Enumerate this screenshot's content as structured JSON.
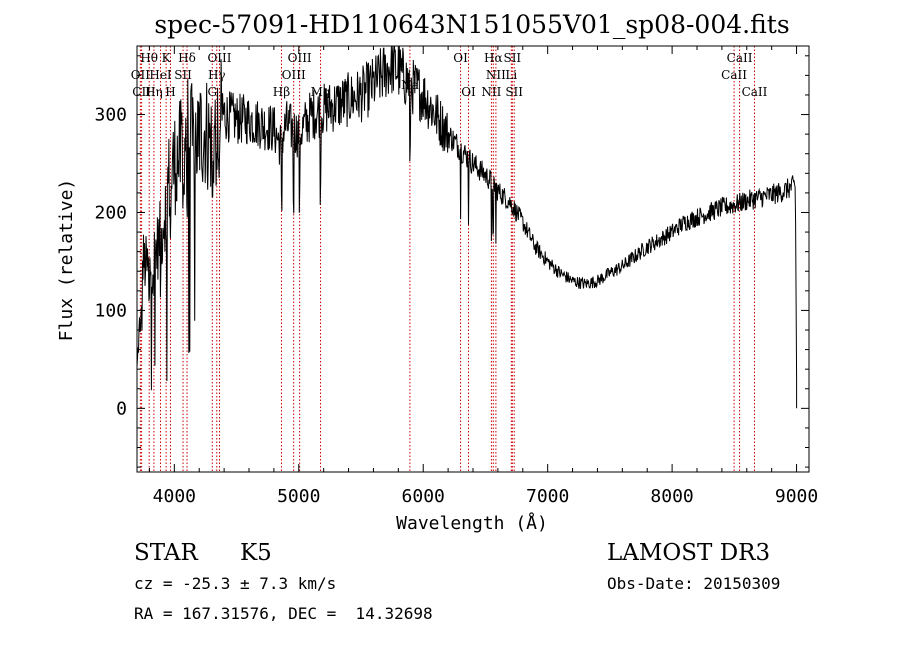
{
  "chart_data": {
    "type": "line",
    "title": "spec-57091-HD110643N151055V01_sp08-004.fits",
    "xlabel": "Wavelength (Å)",
    "ylabel": "Flux (relative)",
    "xlim": [
      3700,
      9100
    ],
    "ylim": [
      -65,
      370
    ],
    "x_ticks": [
      4000,
      5000,
      6000,
      7000,
      8000,
      9000
    ],
    "y_ticks": [
      0,
      100,
      200,
      300
    ],
    "x_tick_labels": [
      "4000",
      "5000",
      "6000",
      "7000",
      "8000",
      "9000"
    ],
    "y_tick_labels": [
      "0",
      "100",
      "200",
      "300"
    ],
    "grid": false,
    "series": [
      {
        "x": [
          3700,
          3750,
          3800,
          3850,
          3900,
          3950,
          4000,
          4050,
          4100,
          4150,
          4200,
          4250,
          4300,
          4350,
          4400,
          4500,
          4600,
          4700,
          4800,
          4850,
          4900,
          5000,
          5100,
          5200,
          5300,
          5400,
          5500,
          5600,
          5700,
          5750,
          5800,
          5900,
          6000,
          6100,
          6200,
          6300,
          6400,
          6500,
          6563,
          6600,
          6700,
          6800,
          6900,
          7000,
          7100,
          7200,
          7300,
          7400,
          7500,
          7600,
          7700,
          7800,
          7900,
          8000,
          8100,
          8200,
          8300,
          8400,
          8500,
          8600,
          8700,
          8800,
          8900,
          8990,
          9000
        ],
        "y": [
          40,
          150,
          140,
          160,
          180,
          230,
          250,
          260,
          285,
          270,
          280,
          285,
          270,
          290,
          300,
          295,
          295,
          290,
          285,
          270,
          290,
          280,
          300,
          305,
          310,
          315,
          320,
          330,
          345,
          350,
          345,
          330,
          320,
          300,
          280,
          265,
          250,
          238,
          230,
          222,
          210,
          190,
          165,
          150,
          138,
          130,
          127,
          130,
          138,
          145,
          155,
          165,
          172,
          180,
          190,
          195,
          200,
          205,
          208,
          212,
          215,
          218,
          222,
          228,
          30
        ]
      }
    ],
    "line_labels": [
      {
        "text": "Hθ",
        "wl": 3798,
        "row": 0
      },
      {
        "text": "OII",
        "wl": 3727,
        "row": 1
      },
      {
        "text": "CII",
        "wl": 3737,
        "row": 2
      },
      {
        "text": "K",
        "wl": 3934,
        "row": 0
      },
      {
        "text": "HeI",
        "wl": 3889,
        "row": 1
      },
      {
        "text": "Hη",
        "wl": 3836,
        "row": 2
      },
      {
        "text": "SII",
        "wl": 4070,
        "row": 1
      },
      {
        "text": "H",
        "wl": 3969,
        "row": 2
      },
      {
        "text": "Hδ",
        "wl": 4102,
        "row": 0
      },
      {
        "text": "OIII",
        "wl": 4363,
        "row": 0
      },
      {
        "text": "Hγ",
        "wl": 4341,
        "row": 1
      },
      {
        "text": "G",
        "wl": 4305,
        "row": 2
      },
      {
        "text": "OIII",
        "wl": 5007,
        "row": 0
      },
      {
        "text": "OIII",
        "wl": 4959,
        "row": 1
      },
      {
        "text": "Hβ",
        "wl": 4861,
        "row": 2
      },
      {
        "text": "Mg",
        "wl": 5175,
        "row": 2
      },
      {
        "text": "Na",
        "wl": 5893,
        "row": 1.6
      },
      {
        "text": "OI",
        "wl": 6300,
        "row": 0
      },
      {
        "text": "OI",
        "wl": 6364,
        "row": 2
      },
      {
        "text": "Hα",
        "wl": 6563,
        "row": 0
      },
      {
        "text": "SII",
        "wl": 6716,
        "row": 0
      },
      {
        "text": "NII",
        "wl": 6584,
        "row": 1
      },
      {
        "text": "Li",
        "wl": 6708,
        "row": 1
      },
      {
        "text": "NII",
        "wl": 6548,
        "row": 2
      },
      {
        "text": "SII",
        "wl": 6731,
        "row": 2
      },
      {
        "text": "CaII",
        "wl": 8542,
        "row": 0
      },
      {
        "text": "CaII",
        "wl": 8498,
        "row": 1
      },
      {
        "text": "CaII",
        "wl": 8662,
        "row": 2
      }
    ],
    "line_marker_color": "#cc0000",
    "line_marker_wavelengths": [
      3727,
      3737,
      3798,
      3836,
      3889,
      3934,
      3969,
      4070,
      4102,
      4305,
      4341,
      4363,
      4861,
      4959,
      5007,
      5175,
      5893,
      6300,
      6364,
      6548,
      6563,
      6584,
      6708,
      6716,
      6731,
      8498,
      8542,
      8662
    ]
  },
  "info": {
    "class": "STAR",
    "subclass": "K5",
    "survey": "LAMOST DR3",
    "cz": "cz = -25.3 ± 7.3 km/s",
    "obs_date": "Obs-Date: 20150309",
    "coords": "RA = 167.31576, DEC =  14.32698"
  }
}
